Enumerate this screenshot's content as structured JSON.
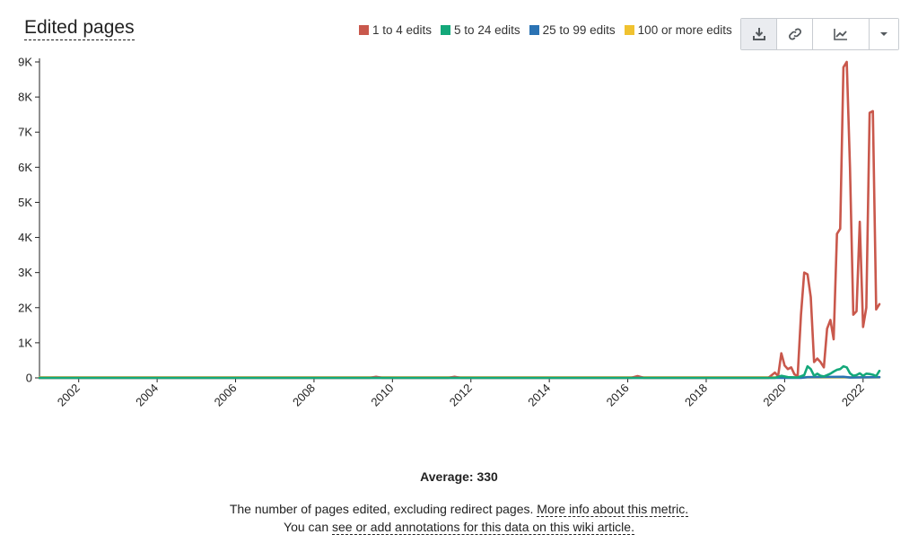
{
  "header": {
    "title": "Edited pages"
  },
  "legend": [
    {
      "label": "1 to 4 edits",
      "color": "#c9584c"
    },
    {
      "label": "5 to 24 edits",
      "color": "#14a87a"
    },
    {
      "label": "25 to 99 edits",
      "color": "#2b73b4"
    },
    {
      "label": "100 or more edits",
      "color": "#f0c230"
    }
  ],
  "toolbar": {
    "download_icon": "download-icon",
    "link_icon": "link-icon",
    "chart_type_icon": "line-chart-icon",
    "dropdown_icon": "caret-down-icon"
  },
  "footer": {
    "average": "Average: 330",
    "line1_text": "The number of pages edited, excluding redirect pages.",
    "line1_link": "More info about this metric.",
    "line2_text": "You can",
    "line2_link": "see or add annotations for this data on this wiki article."
  },
  "chart_data": {
    "type": "line",
    "xlabel": "",
    "ylabel": "",
    "ylim": [
      0,
      9000
    ],
    "xlim": [
      "2001-01",
      "2022-06"
    ],
    "yticks": [
      "0",
      "1K",
      "2K",
      "3K",
      "4K",
      "5K",
      "6K",
      "7K",
      "8K",
      "9K"
    ],
    "xticks": [
      "2002",
      "2004",
      "2006",
      "2008",
      "2010",
      "2012",
      "2014",
      "2016",
      "2018",
      "2020",
      "2022"
    ],
    "grid": false,
    "legend_position": "top-right",
    "series": [
      {
        "name": "1 to 4 edits",
        "color": "#c9584c",
        "points": [
          [
            "2001-01",
            0
          ],
          [
            "2009-06",
            0
          ],
          [
            "2009-08",
            30
          ],
          [
            "2009-10",
            0
          ],
          [
            "2011-06",
            0
          ],
          [
            "2011-08",
            30
          ],
          [
            "2011-10",
            0
          ],
          [
            "2016-02",
            0
          ],
          [
            "2016-04",
            50
          ],
          [
            "2016-06",
            0
          ],
          [
            "2019-08",
            0
          ],
          [
            "2019-10",
            150
          ],
          [
            "2019-11",
            50
          ],
          [
            "2019-12",
            700
          ],
          [
            "2020-01",
            350
          ],
          [
            "2020-02",
            250
          ],
          [
            "2020-03",
            300
          ],
          [
            "2020-04",
            100
          ],
          [
            "2020-05",
            50
          ],
          [
            "2020-06",
            1800
          ],
          [
            "2020-07",
            3000
          ],
          [
            "2020-08",
            2950
          ],
          [
            "2020-09",
            2300
          ],
          [
            "2020-10",
            450
          ],
          [
            "2020-11",
            550
          ],
          [
            "2020-12",
            450
          ],
          [
            "2021-01",
            300
          ],
          [
            "2021-02",
            1400
          ],
          [
            "2021-03",
            1650
          ],
          [
            "2021-04",
            1100
          ],
          [
            "2021-05",
            4100
          ],
          [
            "2021-06",
            4250
          ],
          [
            "2021-07",
            8850
          ],
          [
            "2021-08",
            9000
          ],
          [
            "2021-09",
            6000
          ],
          [
            "2021-10",
            1800
          ],
          [
            "2021-11",
            1900
          ],
          [
            "2021-12",
            4450
          ],
          [
            "2022-01",
            1450
          ],
          [
            "2022-02",
            2000
          ],
          [
            "2022-03",
            7550
          ],
          [
            "2022-04",
            7600
          ],
          [
            "2022-05",
            1950
          ],
          [
            "2022-06",
            2100
          ]
        ]
      },
      {
        "name": "5 to 24 edits",
        "color": "#14a87a",
        "points": [
          [
            "2001-01",
            0
          ],
          [
            "2019-10",
            0
          ],
          [
            "2019-12",
            60
          ],
          [
            "2020-02",
            20
          ],
          [
            "2020-05",
            10
          ],
          [
            "2020-07",
            80
          ],
          [
            "2020-08",
            330
          ],
          [
            "2020-09",
            250
          ],
          [
            "2020-10",
            60
          ],
          [
            "2020-11",
            120
          ],
          [
            "2020-12",
            60
          ],
          [
            "2021-01",
            40
          ],
          [
            "2021-02",
            80
          ],
          [
            "2021-03",
            120
          ],
          [
            "2021-04",
            180
          ],
          [
            "2021-05",
            230
          ],
          [
            "2021-06",
            250
          ],
          [
            "2021-07",
            330
          ],
          [
            "2021-08",
            300
          ],
          [
            "2021-09",
            130
          ],
          [
            "2021-10",
            60
          ],
          [
            "2021-11",
            80
          ],
          [
            "2021-12",
            130
          ],
          [
            "2022-01",
            60
          ],
          [
            "2022-02",
            120
          ],
          [
            "2022-03",
            110
          ],
          [
            "2022-04",
            90
          ],
          [
            "2022-05",
            50
          ],
          [
            "2022-06",
            200
          ]
        ]
      },
      {
        "name": "25 to 99 edits",
        "color": "#2b73b4",
        "points": [
          [
            "2001-01",
            0
          ],
          [
            "2020-06",
            0
          ],
          [
            "2020-08",
            20
          ],
          [
            "2021-07",
            30
          ],
          [
            "2021-09",
            10
          ],
          [
            "2022-06",
            20
          ]
        ]
      },
      {
        "name": "100 or more edits",
        "color": "#f0c230",
        "points": [
          [
            "2001-01",
            15
          ],
          [
            "2022-06",
            15
          ]
        ]
      }
    ]
  }
}
